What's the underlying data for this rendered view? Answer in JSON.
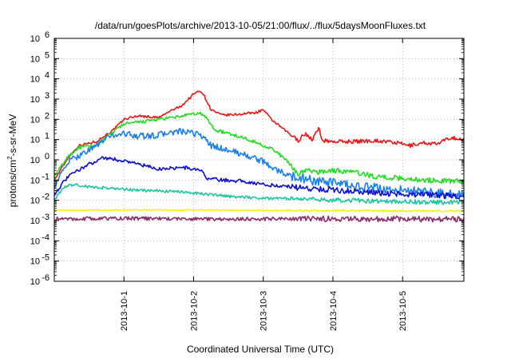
{
  "chart_data": {
    "type": "line",
    "title": "/data/run/goesPlots/archive/2013-10-05/21:00/flux/../flux/5daysMoonFluxes.txt",
    "xlabel": "Coordinated Universal Time (UTC)",
    "ylabel": {
      "prefix": "protons/cm",
      "sup": "2",
      "suffix": "-s-sr-MeV"
    },
    "yscale": "log",
    "ylim": [
      1e-06,
      1000000.0
    ],
    "xlim": [
      0.0,
      5.88
    ],
    "x_units": "days since 2013-09-30 00:00 UTC",
    "grid": true,
    "legend": "none",
    "y_ticks": [
      {
        "v": 1e-06,
        "base": "10",
        "exp": "-6"
      },
      {
        "v": 1e-05,
        "base": "10",
        "exp": "-5"
      },
      {
        "v": 0.0001,
        "base": "10",
        "exp": "-4"
      },
      {
        "v": 0.001,
        "base": "10",
        "exp": "-3"
      },
      {
        "v": 0.01,
        "base": "10",
        "exp": "-2"
      },
      {
        "v": 0.1,
        "base": "10",
        "exp": "-1"
      },
      {
        "v": 1.0,
        "base": "10",
        "exp": "0"
      },
      {
        "v": 10.0,
        "base": "10",
        "exp": "1"
      },
      {
        "v": 100.0,
        "base": "10",
        "exp": "2"
      },
      {
        "v": 1000.0,
        "base": "10",
        "exp": "3"
      },
      {
        "v": 10000.0,
        "base": "10",
        "exp": "4"
      },
      {
        "v": 100000.0,
        "base": "10",
        "exp": "5"
      },
      {
        "v": 1000000.0,
        "base": "10",
        "exp": "6"
      }
    ],
    "x_ticks": [
      {
        "x": 1,
        "label": "2013-10-1"
      },
      {
        "x": 2,
        "label": "2013-10-2"
      },
      {
        "x": 3,
        "label": "2013-10-3"
      },
      {
        "x": 4,
        "label": "2013-10-4"
      },
      {
        "x": 5,
        "label": "2013-10-5"
      }
    ],
    "series": [
      {
        "color": "#e8181a",
        "noise": 0.06,
        "points": [
          [
            0,
            0.1
          ],
          [
            0.2,
            1.3
          ],
          [
            0.35,
            5
          ],
          [
            0.6,
            8
          ],
          [
            0.85,
            30
          ],
          [
            1.0,
            100
          ],
          [
            1.2,
            150
          ],
          [
            1.5,
            120
          ],
          [
            1.7,
            300
          ],
          [
            1.8,
            400
          ],
          [
            1.9,
            800
          ],
          [
            2.0,
            1800
          ],
          [
            2.1,
            2600
          ],
          [
            2.15,
            1500
          ],
          [
            2.25,
            300
          ],
          [
            2.4,
            160
          ],
          [
            2.6,
            170
          ],
          [
            2.9,
            220
          ],
          [
            3.0,
            300
          ],
          [
            3.1,
            110
          ],
          [
            3.3,
            30
          ],
          [
            3.5,
            9
          ],
          [
            3.6,
            20
          ],
          [
            3.7,
            10
          ],
          [
            3.8,
            35
          ],
          [
            3.85,
            9
          ],
          [
            4.0,
            8
          ],
          [
            4.3,
            8
          ],
          [
            4.6,
            9
          ],
          [
            4.9,
            7
          ],
          [
            5.1,
            5
          ],
          [
            5.3,
            7
          ],
          [
            5.5,
            6
          ],
          [
            5.7,
            13
          ],
          [
            5.88,
            9
          ]
        ]
      },
      {
        "color": "#22dd22",
        "noise": 0.08,
        "points": [
          [
            0,
            0.15
          ],
          [
            0.2,
            1.5
          ],
          [
            0.35,
            4
          ],
          [
            0.6,
            5
          ],
          [
            0.85,
            25
          ],
          [
            1.0,
            60
          ],
          [
            1.2,
            70
          ],
          [
            1.5,
            100
          ],
          [
            1.7,
            120
          ],
          [
            1.8,
            140
          ],
          [
            2.0,
            180
          ],
          [
            2.1,
            200
          ],
          [
            2.2,
            100
          ],
          [
            2.3,
            30
          ],
          [
            2.5,
            20
          ],
          [
            2.8,
            10
          ],
          [
            3.0,
            5
          ],
          [
            3.1,
            4
          ],
          [
            3.3,
            1.2
          ],
          [
            3.5,
            0.2
          ],
          [
            3.6,
            0.3
          ],
          [
            3.8,
            0.25
          ],
          [
            4.0,
            0.3
          ],
          [
            4.3,
            0.25
          ],
          [
            4.6,
            0.15
          ],
          [
            5.0,
            0.12
          ],
          [
            5.3,
            0.1
          ],
          [
            5.6,
            0.09
          ],
          [
            5.88,
            0.09
          ]
        ]
      },
      {
        "color": "#1a7fe8",
        "noise": 0.15,
        "points": [
          [
            0,
            0.05
          ],
          [
            0.2,
            0.8
          ],
          [
            0.4,
            2
          ],
          [
            0.6,
            5
          ],
          [
            0.8,
            15
          ],
          [
            1.0,
            20
          ],
          [
            1.2,
            15
          ],
          [
            1.4,
            15
          ],
          [
            1.6,
            20
          ],
          [
            1.8,
            25
          ],
          [
            2.0,
            20
          ],
          [
            2.1,
            18
          ],
          [
            2.25,
            5
          ],
          [
            2.5,
            3
          ],
          [
            2.8,
            1.5
          ],
          [
            3.0,
            0.8
          ],
          [
            3.2,
            0.3
          ],
          [
            3.4,
            0.15
          ],
          [
            3.6,
            0.12
          ],
          [
            3.8,
            0.08
          ],
          [
            4.0,
            0.07
          ],
          [
            4.3,
            0.05
          ],
          [
            4.6,
            0.04
          ],
          [
            5.0,
            0.03
          ],
          [
            5.3,
            0.025
          ],
          [
            5.6,
            0.02
          ],
          [
            5.88,
            0.02
          ]
        ]
      },
      {
        "color": "#0e12d0",
        "noise": 0.09,
        "points": [
          [
            0,
            0.02
          ],
          [
            0.2,
            0.15
          ],
          [
            0.4,
            0.4
          ],
          [
            0.6,
            0.9
          ],
          [
            0.7,
            1.3
          ],
          [
            0.9,
            1.0
          ],
          [
            1.1,
            0.8
          ],
          [
            1.3,
            0.5
          ],
          [
            1.5,
            0.35
          ],
          [
            1.7,
            0.4
          ],
          [
            1.9,
            0.4
          ],
          [
            2.1,
            0.3
          ],
          [
            2.2,
            0.12
          ],
          [
            2.4,
            0.1
          ],
          [
            2.7,
            0.09
          ],
          [
            3.0,
            0.06
          ],
          [
            3.3,
            0.05
          ],
          [
            3.6,
            0.04
          ],
          [
            3.9,
            0.035
          ],
          [
            4.2,
            0.03
          ],
          [
            4.5,
            0.025
          ],
          [
            5.0,
            0.02
          ],
          [
            5.5,
            0.018
          ],
          [
            5.88,
            0.015
          ]
        ]
      },
      {
        "color": "#1fc6a0",
        "noise": 0.07,
        "points": [
          [
            0,
            0.01
          ],
          [
            0.15,
            0.05
          ],
          [
            0.3,
            0.06
          ],
          [
            0.5,
            0.045
          ],
          [
            0.8,
            0.04
          ],
          [
            1.0,
            0.035
          ],
          [
            1.3,
            0.03
          ],
          [
            1.6,
            0.028
          ],
          [
            1.9,
            0.025
          ],
          [
            2.1,
            0.022
          ],
          [
            2.3,
            0.018
          ],
          [
            2.6,
            0.015
          ],
          [
            3.0,
            0.013
          ],
          [
            3.4,
            0.012
          ],
          [
            3.8,
            0.011
          ],
          [
            4.2,
            0.01
          ],
          [
            4.6,
            0.009
          ],
          [
            5.0,
            0.0085
          ],
          [
            5.5,
            0.008
          ],
          [
            5.88,
            0.0085
          ]
        ]
      },
      {
        "color": "#f2f21a",
        "noise": 0.03,
        "points": [
          [
            0,
            0.0032
          ],
          [
            1,
            0.0033
          ],
          [
            2,
            0.0033
          ],
          [
            3,
            0.0032
          ],
          [
            4,
            0.0031
          ],
          [
            5,
            0.003
          ],
          [
            5.88,
            0.003
          ]
        ]
      },
      {
        "color": "#8b2b6a",
        "noise": 0.09,
        "points": [
          [
            0,
            0.0012
          ],
          [
            1,
            0.0013
          ],
          [
            2,
            0.0012
          ],
          [
            3,
            0.0012
          ],
          [
            4,
            0.0012
          ],
          [
            5,
            0.0012
          ],
          [
            5.88,
            0.0012
          ]
        ]
      }
    ]
  }
}
